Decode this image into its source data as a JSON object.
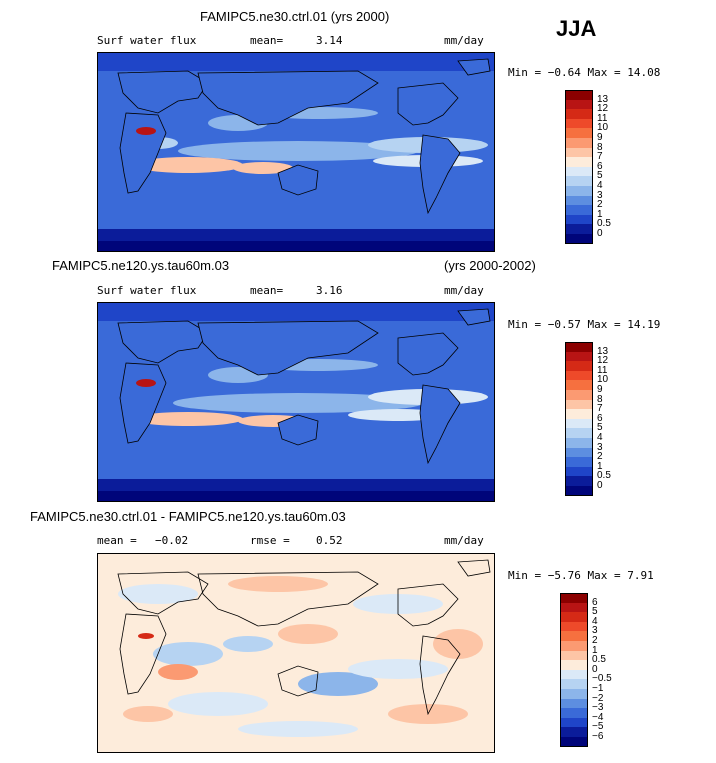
{
  "season_label": "JJA",
  "panels": [
    {
      "title": "FAMIPC5.ne30.ctrl.01 (yrs 2000)",
      "left_label": "Surf water flux",
      "stat_label": "mean=",
      "stat_value": "3.14",
      "units": "mm/day",
      "minmax": "Min =  −0.64  Max =   14.08",
      "colorbar": {
        "labels": [
          "13",
          "12",
          "11",
          "10",
          "9",
          "8",
          "7",
          "6",
          "5",
          "4",
          "3",
          "2",
          "1",
          "0.5",
          "0"
        ],
        "colors": [
          "#8b0000",
          "#b81414",
          "#d52a16",
          "#ee4a2a",
          "#f6703f",
          "#fb9a72",
          "#fdc5a6",
          "#fdecdb",
          "#dbe9f7",
          "#b6d3f2",
          "#8cb5ea",
          "#5d8ee0",
          "#3a6ad8",
          "#1f45c8",
          "#0b1c9a",
          "#00057a"
        ]
      }
    },
    {
      "title": "FAMIPC5.ne120.ys.tau60m.03",
      "title_right": "(yrs 2000-2002)",
      "left_label": "Surf water flux",
      "stat_label": "mean=",
      "stat_value": "3.16",
      "units": "mm/day",
      "minmax": "Min =  −0.57  Max =   14.19",
      "colorbar": {
        "labels": [
          "13",
          "12",
          "11",
          "10",
          "9",
          "8",
          "7",
          "6",
          "5",
          "4",
          "3",
          "2",
          "1",
          "0.5",
          "0"
        ],
        "colors": [
          "#8b0000",
          "#b81414",
          "#d52a16",
          "#ee4a2a",
          "#f6703f",
          "#fb9a72",
          "#fdc5a6",
          "#fdecdb",
          "#dbe9f7",
          "#b6d3f2",
          "#8cb5ea",
          "#5d8ee0",
          "#3a6ad8",
          "#1f45c8",
          "#0b1c9a",
          "#00057a"
        ]
      }
    },
    {
      "title": "FAMIPC5.ne30.ctrl.01 - FAMIPC5.ne120.ys.tau60m.03",
      "left_label": "mean =",
      "left_value": "−0.02",
      "stat_label": "rmse =",
      "stat_value": "0.52",
      "units": "mm/day",
      "minmax": "Min =  −5.76  Max =    7.91",
      "colorbar": {
        "labels": [
          "6",
          "5",
          "4",
          "3",
          "2",
          "1",
          "0.5",
          "0",
          "−0.5",
          "−1",
          "−2",
          "−3",
          "−4",
          "−5",
          "−6"
        ],
        "colors": [
          "#8b0000",
          "#b81414",
          "#d52a16",
          "#ee4a2a",
          "#f6703f",
          "#fb9a72",
          "#fdc5a6",
          "#fdecdb",
          "#dbe9f7",
          "#b6d3f2",
          "#8cb5ea",
          "#5d8ee0",
          "#3a6ad8",
          "#1f45c8",
          "#0b1c9a",
          "#00057a"
        ]
      }
    }
  ]
}
